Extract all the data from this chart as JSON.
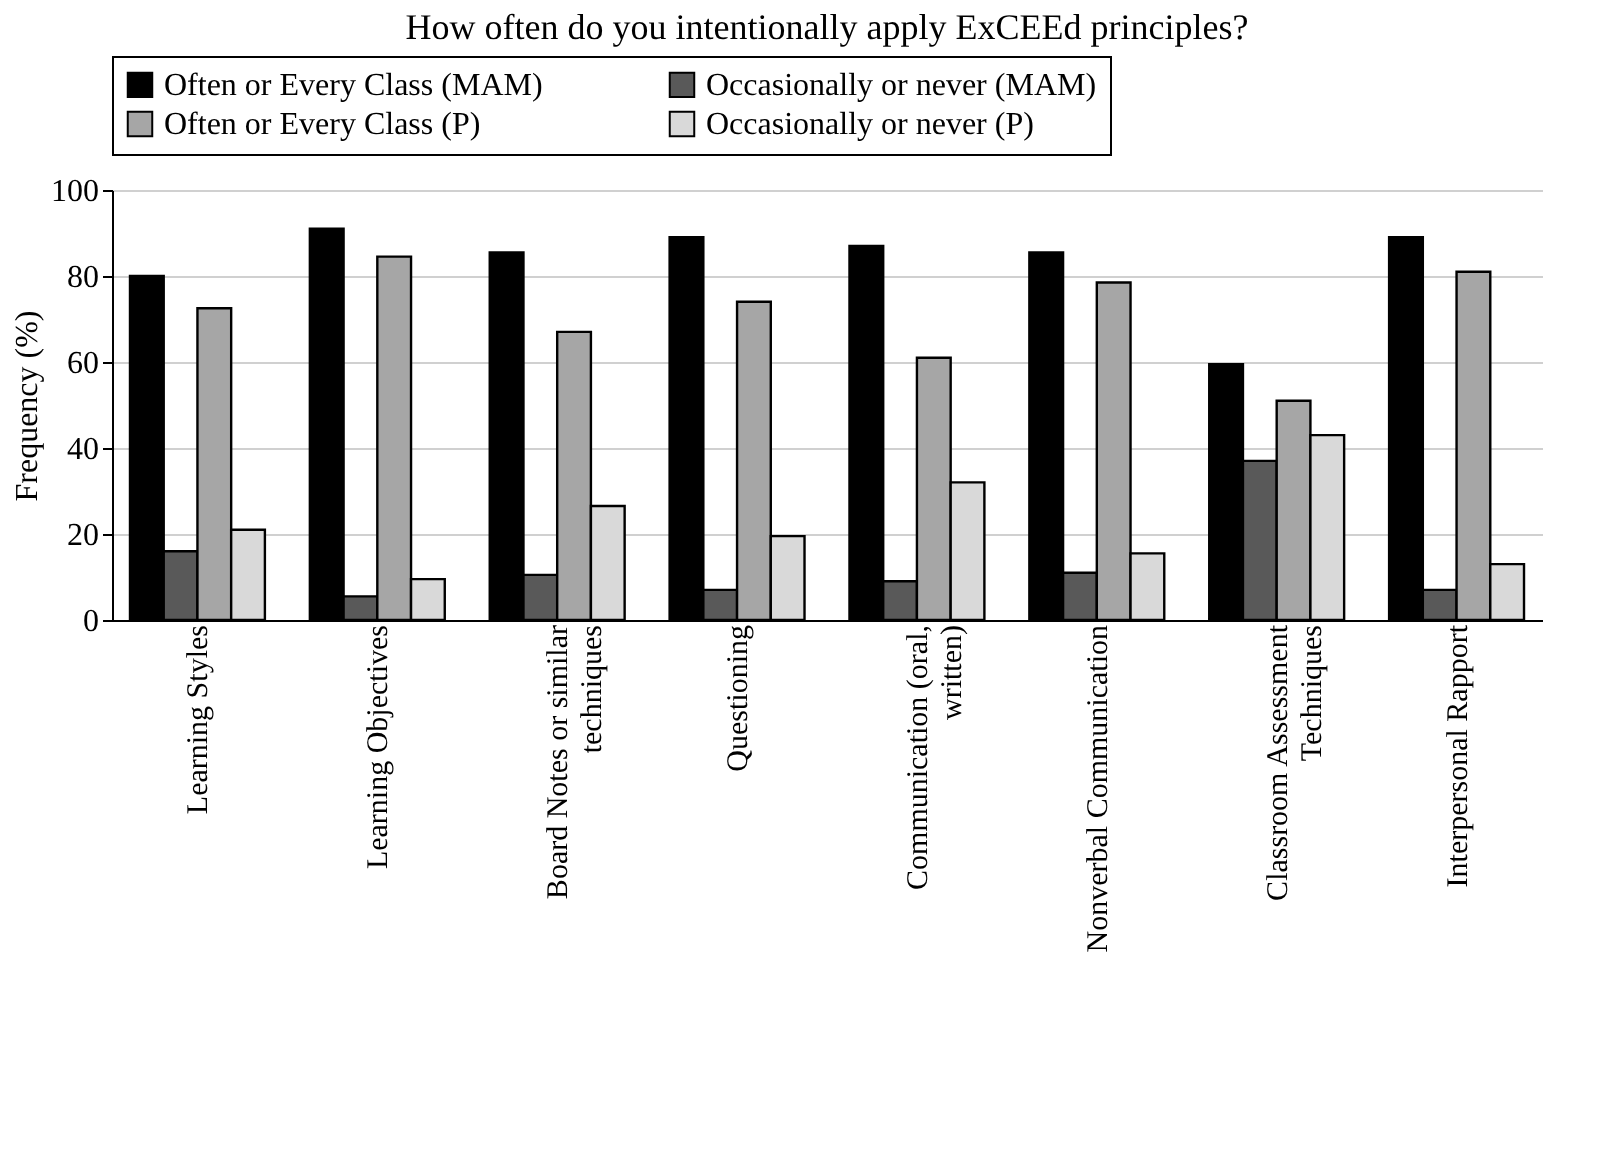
{
  "chart_data": {
    "type": "bar",
    "title": "How often do you intentionally apply ExCEEd principles?",
    "ylabel": "Frequency (%)",
    "categories": [
      "Learning Styles",
      "Learning Objectives",
      "Board Notes or similar\ntechniques",
      "Questioning",
      "Communication (oral,\nwritten)",
      "Nonverbal Communication",
      "Classroom Assessment\nTechniques",
      "Interpersonal Rapport"
    ],
    "series": [
      {
        "name": "Often or Every Class (MAM)",
        "color": "#000000",
        "values": [
          80,
          91,
          85.5,
          89,
          87,
          85.5,
          59.5,
          89
        ]
      },
      {
        "name": "Occasionally or never (MAM)",
        "color": "#595959",
        "values": [
          16,
          5.5,
          10.5,
          7,
          9,
          11,
          37,
          7
        ]
      },
      {
        "name": "Often or Every Class (P)",
        "color": "#a6a6a6",
        "values": [
          72.5,
          84.5,
          67,
          74,
          61,
          78.5,
          51,
          81
        ]
      },
      {
        "name": "Occasionally or never (P)",
        "color": "#d9d9d9",
        "values": [
          21,
          9.5,
          26.5,
          19.5,
          32,
          15.5,
          43,
          13
        ]
      }
    ],
    "ylim": [
      0,
      100
    ],
    "yticks": [
      0,
      20,
      40,
      60,
      80,
      100
    ],
    "grid": "y",
    "legend": "top"
  }
}
